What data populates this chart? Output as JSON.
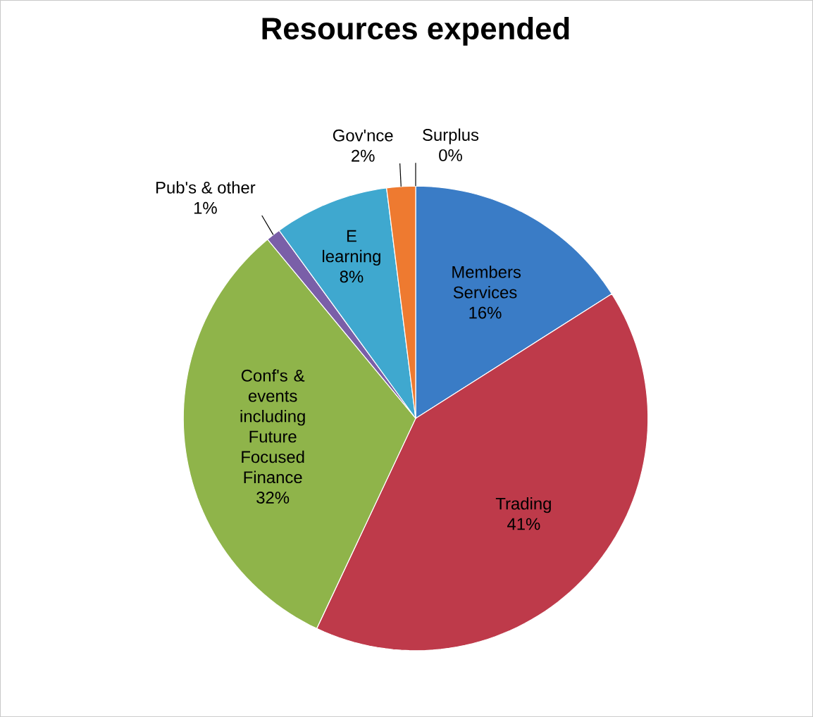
{
  "chart_data": {
    "type": "pie",
    "title": "Resources expended",
    "categories": [
      "Members Services",
      "Trading",
      "Conf's & events including Future Focused Finance",
      "Pub's & other",
      "E learning",
      "Gov'nce",
      "Surplus"
    ],
    "values": [
      16,
      41,
      32,
      1,
      8,
      2,
      0
    ],
    "value_labels": [
      "16%",
      "41%",
      "32%",
      "1%",
      "8%",
      "2%",
      "0%"
    ],
    "colors": [
      "#3a7cc6",
      "#be3a4a",
      "#8fb44a",
      "#7a5fa8",
      "#3fa8cf",
      "#ee7a30",
      "#2c4d75"
    ]
  }
}
